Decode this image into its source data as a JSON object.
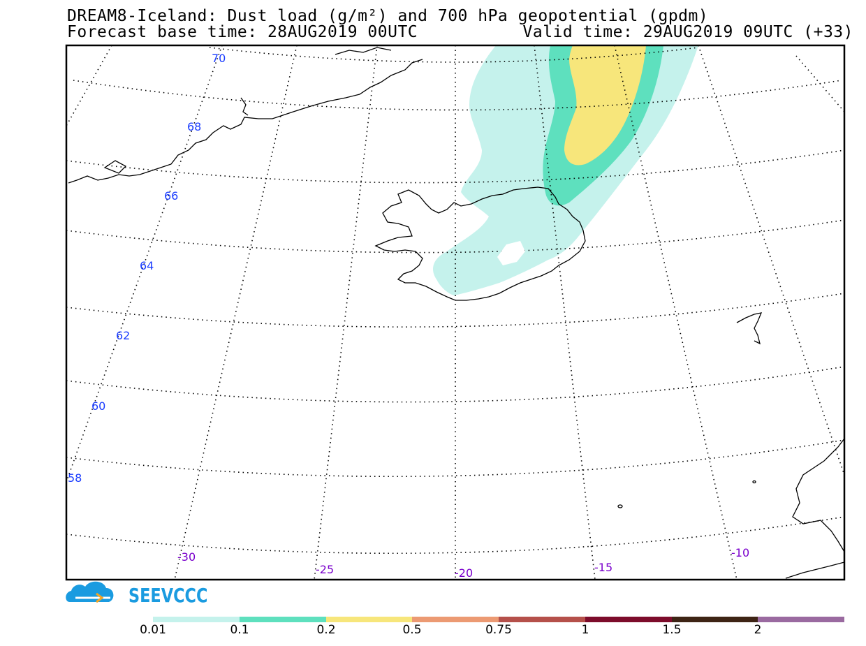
{
  "header": {
    "title_line1": "DREAM8-Iceland: Dust load (g/m²) and 700 hPa geopotential (gpdm)",
    "title_line2": "Forecast base time: 28AUG2019 00UTC",
    "valid_time": "Valid time: 29AUG2019 09UTC (+33)"
  },
  "map": {
    "region": "Iceland",
    "latitude_labels": [
      "70",
      "68",
      "66",
      "64",
      "62",
      "60",
      "58"
    ],
    "longitude_labels": [
      "-30",
      "-25",
      "-20",
      "-15",
      "-10"
    ],
    "colors": {
      "lat_label": "#1a3cff",
      "lon_label": "#7a00cc",
      "coast": "#000000"
    }
  },
  "logo": {
    "text": "SEEVCCC",
    "color": "#1a9be0",
    "icon": "cloud-logo-icon"
  },
  "colorbar": {
    "segments": [
      {
        "color": "#c5f2ec"
      },
      {
        "color": "#5ee0be"
      },
      {
        "color": "#f7e67b"
      },
      {
        "color": "#ec9a73"
      },
      {
        "color": "#b5504a"
      },
      {
        "color": "#7d0c2b"
      },
      {
        "color": "#3e2415"
      },
      {
        "color": "#9a6aa0"
      }
    ],
    "labels": [
      "0.01",
      "0.1",
      "0.2",
      "0.5",
      "0.75",
      "1",
      "1.5",
      "2"
    ]
  }
}
